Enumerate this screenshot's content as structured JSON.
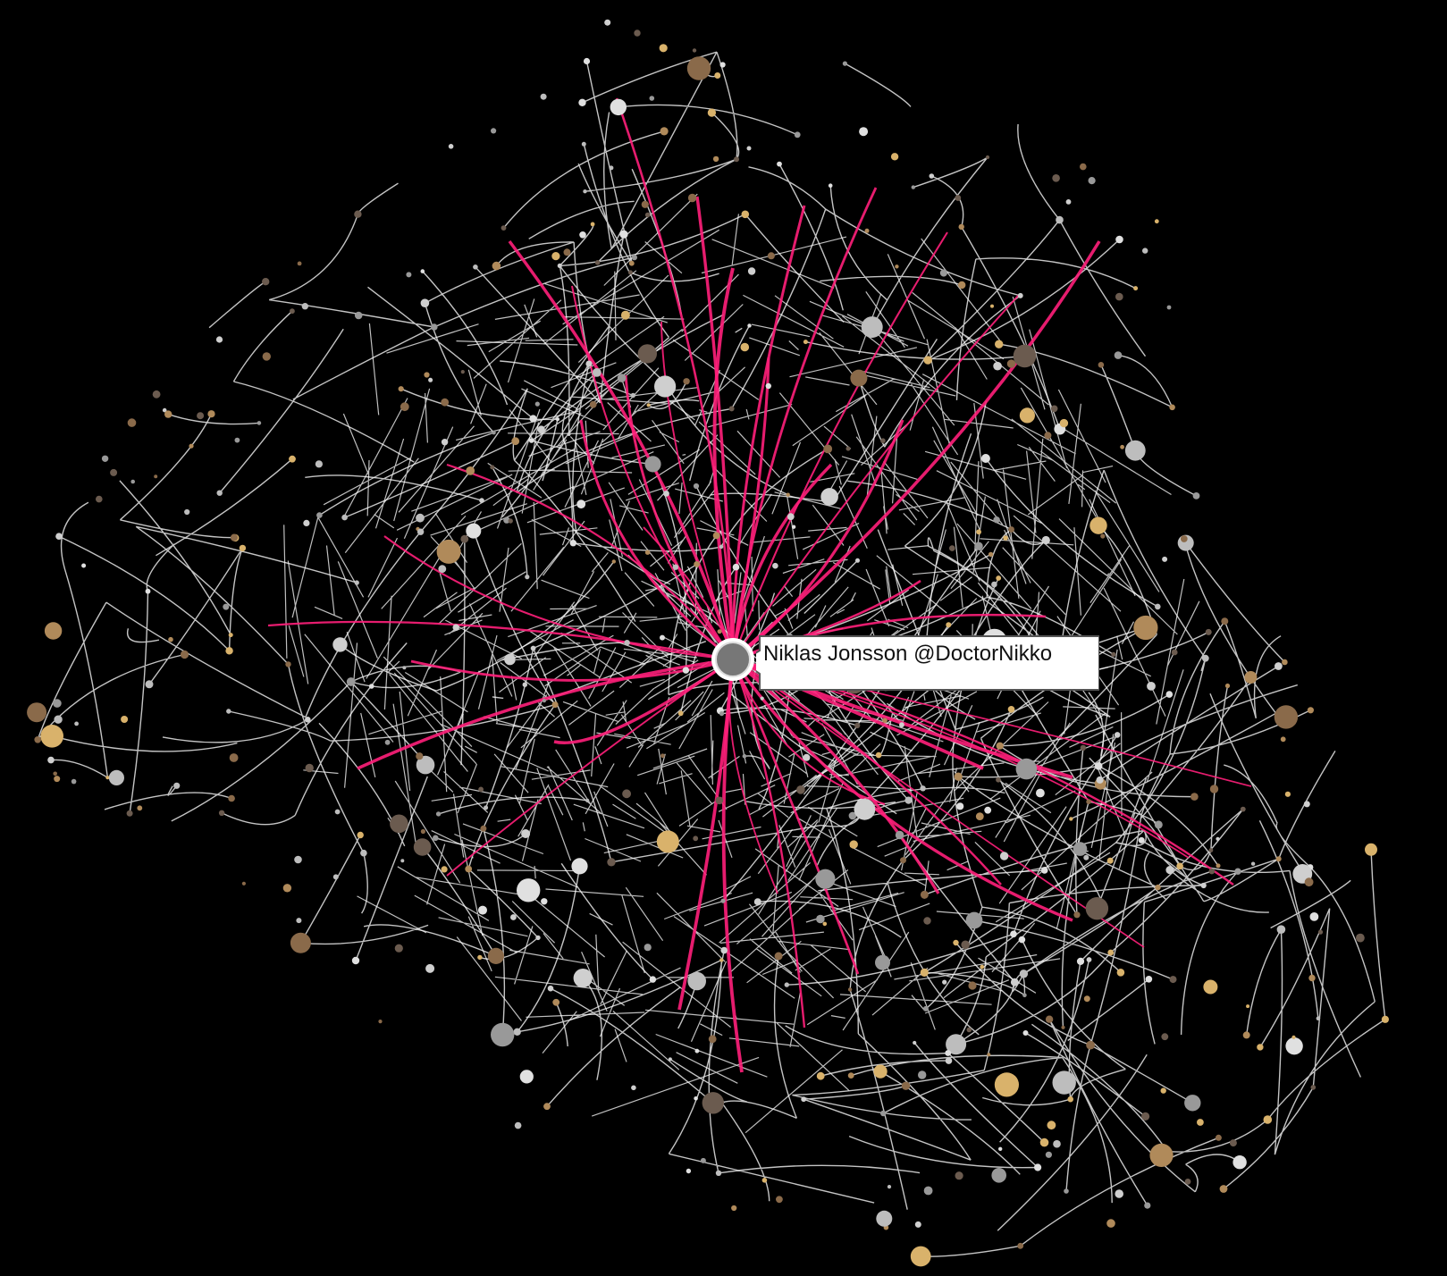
{
  "graph": {
    "background": "#000000",
    "edge_color": "#e6e6e6",
    "highlight_color": "#ff1f7a",
    "hub": {
      "label": "Niklas Jonsson @DoctorNikko"
    }
  }
}
